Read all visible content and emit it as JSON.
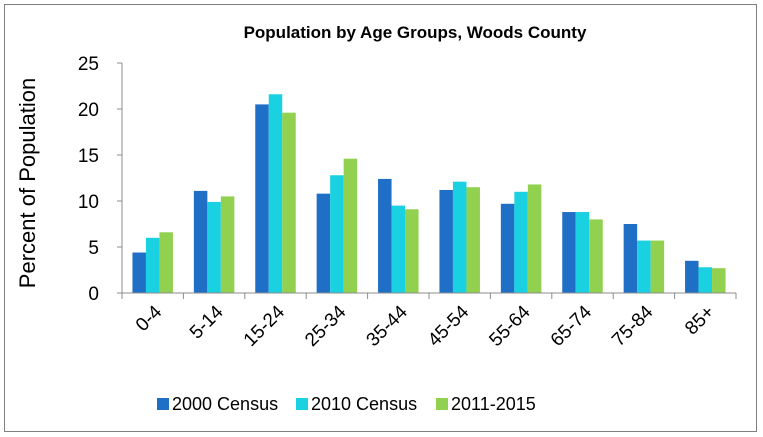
{
  "chart_data": {
    "type": "bar",
    "title": "Population by Age Groups, Woods County",
    "xlabel": "",
    "ylabel": "Percent of Population",
    "ylim": [
      0,
      25
    ],
    "yticks": [
      0,
      5,
      10,
      15,
      20,
      25
    ],
    "grid": false,
    "legend_position": "bottom",
    "categories": [
      "0-4",
      "5-14",
      "15-24",
      "25-34",
      "35-44",
      "45-54",
      "55-64",
      "65-74",
      "75-84",
      "85+"
    ],
    "series": [
      {
        "name": "2000 Census",
        "color": "#1f6fc6",
        "values": [
          4.4,
          11.1,
          20.5,
          10.8,
          12.4,
          11.2,
          9.7,
          8.8,
          7.5,
          3.5
        ]
      },
      {
        "name": "2010 Census",
        "color": "#19d1e0",
        "values": [
          6.0,
          9.9,
          21.6,
          12.8,
          9.5,
          12.1,
          11.0,
          8.8,
          5.7,
          2.8
        ]
      },
      {
        "name": "2011-2015",
        "color": "#92d050",
        "values": [
          6.6,
          10.5,
          19.6,
          14.6,
          9.1,
          11.5,
          11.8,
          8.0,
          5.7,
          2.7
        ]
      }
    ]
  }
}
